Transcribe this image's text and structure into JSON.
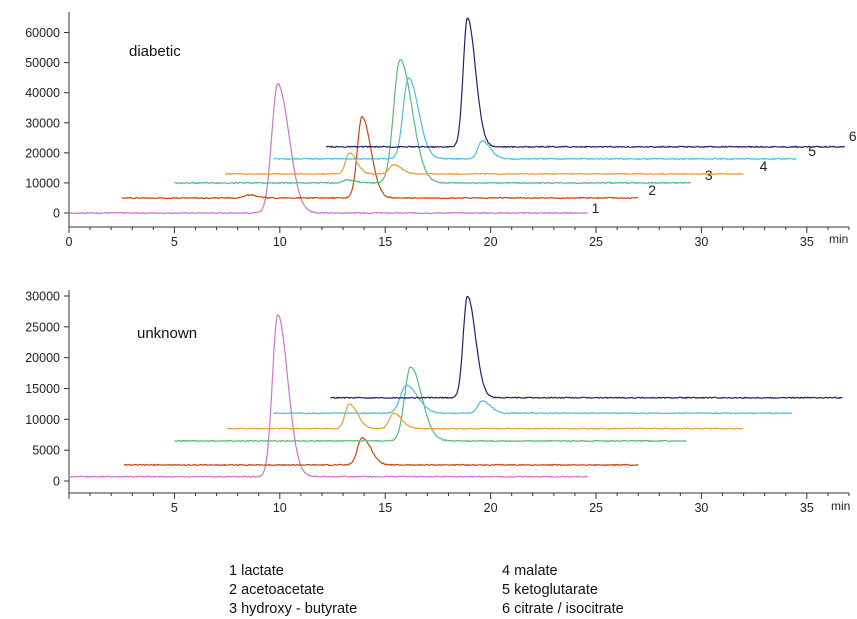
{
  "chart_data": [
    {
      "type": "line",
      "panel_label": "diabetic",
      "x_unit": "min",
      "xlim": [
        0,
        37
      ],
      "ylim": [
        0,
        65000
      ],
      "x_ticks": [
        0,
        5,
        10,
        15,
        20,
        25,
        30,
        35
      ],
      "y_ticks": [
        0,
        10000,
        20000,
        30000,
        40000,
        50000,
        60000
      ],
      "series": [
        {
          "name": "1",
          "color": "#cc77cc",
          "x_range": [
            0,
            24.6
          ],
          "baseline": 0,
          "peaks": [
            {
              "x": 9.9,
              "y": 43000,
              "width": 0.28
            }
          ]
        },
        {
          "name": "2",
          "color": "#cc4411",
          "x_range": [
            2.5,
            27.0
          ],
          "baseline": 5000,
          "peaks": [
            {
              "x": 8.5,
              "y": 6000,
              "width": 0.2
            },
            {
              "x": 13.9,
              "y": 32000,
              "width": 0.22
            }
          ]
        },
        {
          "name": "3",
          "color": "#55bb77",
          "x_range": [
            5.0,
            29.5
          ],
          "baseline": 10000,
          "peaks": [
            {
              "x": 13.2,
              "y": 11000,
              "width": 0.2
            },
            {
              "x": 15.7,
              "y": 51000,
              "width": 0.3
            }
          ]
        },
        {
          "name": "4",
          "color": "#e8a030",
          "x_range": [
            7.4,
            32.0
          ],
          "baseline": 13000,
          "peaks": [
            {
              "x": 13.3,
              "y": 20000,
              "width": 0.18
            },
            {
              "x": 15.4,
              "y": 16000,
              "width": 0.2
            }
          ]
        },
        {
          "name": "5",
          "color": "#55bbdd",
          "x_range": [
            9.7,
            34.5
          ],
          "baseline": 18000,
          "peaks": [
            {
              "x": 16.1,
              "y": 45000,
              "width": 0.25
            },
            {
              "x": 19.6,
              "y": 24000,
              "width": 0.2
            }
          ]
        },
        {
          "name": "6",
          "color": "#222266",
          "x_range": [
            12.2,
            36.8
          ],
          "baseline": 22000,
          "peaks": [
            {
              "x": 18.9,
              "y": 65000,
              "width": 0.2
            }
          ]
        }
      ]
    },
    {
      "type": "line",
      "panel_label": "unknown",
      "x_unit": "min",
      "xlim": [
        0,
        37
      ],
      "ylim": [
        0,
        30000
      ],
      "x_ticks": [
        5,
        10,
        15,
        20,
        25,
        30,
        35
      ],
      "y_ticks": [
        0,
        5000,
        10000,
        15000,
        20000,
        25000,
        30000
      ],
      "series": [
        {
          "name": "1",
          "color": "#cc77cc",
          "x_range": [
            0,
            24.6
          ],
          "baseline": 700,
          "peaks": [
            {
              "x": 9.9,
              "y": 27000,
              "width": 0.25
            }
          ]
        },
        {
          "name": "2",
          "color": "#cc4411",
          "x_range": [
            2.6,
            27.0
          ],
          "baseline": 2600,
          "peaks": [
            {
              "x": 13.9,
              "y": 7000,
              "width": 0.22
            }
          ]
        },
        {
          "name": "3",
          "color": "#55bb77",
          "x_range": [
            5.0,
            29.3
          ],
          "baseline": 6500,
          "peaks": [
            {
              "x": 16.2,
              "y": 18500,
              "width": 0.28
            }
          ]
        },
        {
          "name": "4",
          "color": "#e8a030",
          "x_range": [
            7.5,
            32.0
          ],
          "baseline": 8500,
          "peaks": [
            {
              "x": 13.3,
              "y": 12500,
              "width": 0.2
            },
            {
              "x": 15.4,
              "y": 11000,
              "width": 0.2
            }
          ]
        },
        {
          "name": "5",
          "color": "#55bbdd",
          "x_range": [
            9.7,
            34.3
          ],
          "baseline": 11000,
          "peaks": [
            {
              "x": 16.0,
              "y": 15500,
              "width": 0.28
            },
            {
              "x": 19.6,
              "y": 13000,
              "width": 0.2
            }
          ]
        },
        {
          "name": "6",
          "color": "#222266",
          "x_range": [
            12.4,
            36.7
          ],
          "baseline": 13500,
          "peaks": [
            {
              "x": 18.9,
              "y": 30000,
              "width": 0.2
            }
          ]
        }
      ]
    }
  ],
  "legend": {
    "col1": [
      "1 lactate",
      "2 acetoacetate",
      "3 hydroxy - butyrate"
    ],
    "col2": [
      "4 malate",
      "5 ketoglutarate",
      "6 citrate / isocitrate"
    ]
  }
}
